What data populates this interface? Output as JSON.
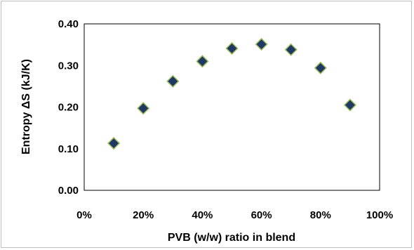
{
  "chart_data": {
    "type": "scatter",
    "title": "",
    "xlabel": "PVB (w/w) ratio in blend",
    "ylabel": "Entropy  ΔS  (kJ/K)",
    "xlim": [
      0,
      100
    ],
    "ylim": [
      0,
      0.4
    ],
    "x_ticks": [
      "0%",
      "20%",
      "40%",
      "60%",
      "80%",
      "100%"
    ],
    "y_ticks": [
      "0.00",
      "0.10",
      "0.20",
      "0.30",
      "0.40"
    ],
    "grid": false,
    "legend": "none",
    "marker": "diamond",
    "marker_fill": "#1f3864",
    "marker_edge": "#9bbb59",
    "series": [
      {
        "x": [
          10,
          20,
          30,
          40,
          50,
          60,
          70,
          80,
          90
        ],
        "y": [
          0.113,
          0.197,
          0.262,
          0.31,
          0.341,
          0.351,
          0.338,
          0.294,
          0.205
        ]
      }
    ]
  }
}
